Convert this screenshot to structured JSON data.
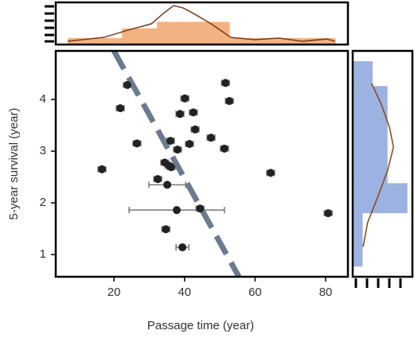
{
  "chart_data": [
    {
      "type": "scatter",
      "x_label": "Passage time (year)",
      "y_label": "5-year survival (year)",
      "x": [
        16.6,
        23.8,
        21.8,
        26.5,
        40.1,
        51.6,
        52.7,
        38.7,
        42.5,
        43.0,
        41.4,
        36.0,
        38.0,
        47.5,
        51.3,
        64.4,
        34.4,
        35.6,
        36.2,
        32.4,
        35.1,
        37.8,
        44.4,
        34.7,
        39.4,
        80.7
      ],
      "values": [
        2.65,
        4.28,
        3.83,
        3.15,
        4.02,
        4.32,
        3.97,
        3.72,
        3.75,
        3.42,
        3.14,
        3.2,
        3.03,
        3.26,
        3.05,
        2.58,
        2.78,
        2.72,
        2.69,
        2.46,
        2.35,
        1.86,
        1.89,
        1.49,
        1.14,
        1.8
      ],
      "xerr": [
        1.1,
        1.1,
        1.1,
        1.1,
        1.1,
        1.1,
        1.1,
        1.1,
        1.1,
        1.1,
        1.1,
        1.1,
        1.1,
        1.1,
        1.1,
        1.1,
        1.1,
        1.1,
        1.1,
        1.1,
        5.2,
        13.5,
        1.1,
        1.1,
        1.8,
        1.1
      ],
      "color": "#222222",
      "error_color": "#777777",
      "trend_x": [
        20,
        55.4
      ],
      "trend_y": [
        4.94,
        0.57
      ],
      "trend_color": "#6b7b8f",
      "xlim": [
        3.5,
        86.3
      ],
      "ylim": [
        0.57,
        4.94
      ],
      "xticks": [
        20,
        40,
        60,
        80
      ],
      "yticks": [
        1,
        2,
        3,
        4
      ]
    },
    {
      "type": "histogram",
      "orientation": "vertical",
      "bins": [
        6.9,
        22.3,
        32.2,
        52.8,
        82.8
      ],
      "values": [
        2,
        5,
        7,
        2
      ],
      "color": "#f0a46c",
      "kde_x": [
        6.9,
        17.1,
        23.8,
        30.6,
        34.0,
        36.9,
        39.6,
        43.0,
        47.5,
        53.1,
        59.9,
        66.7,
        73.4,
        80.2,
        82.7
      ],
      "kde_values": [
        1.0,
        2.2,
        4.4,
        6.4,
        9.6,
        12.0,
        11.3,
        9.3,
        6.4,
        2.2,
        1.5,
        2.0,
        1.0,
        1.7,
        1.0
      ],
      "kde_color": "#7a3b1a",
      "xlim": [
        3.5,
        86.3
      ],
      "ylim": [
        0,
        13
      ]
    },
    {
      "type": "histogram",
      "orientation": "horizontal",
      "bins": [
        0.77,
        1.8,
        2.38,
        4.26,
        4.74
      ],
      "values": [
        2,
        11,
        7,
        4
      ],
      "color": "#8ba4dc",
      "kde_x": [
        2.1,
        3.0,
        4.9,
        7.0,
        8.2,
        7.4,
        5.7,
        3.8
      ],
      "kde_values": [
        1.15,
        1.62,
        2.08,
        2.62,
        3.08,
        3.46,
        3.92,
        4.31
      ],
      "kde_color": "#8b4513",
      "xlim": [
        0,
        12
      ],
      "ylim": [
        0.57,
        4.94
      ]
    }
  ]
}
